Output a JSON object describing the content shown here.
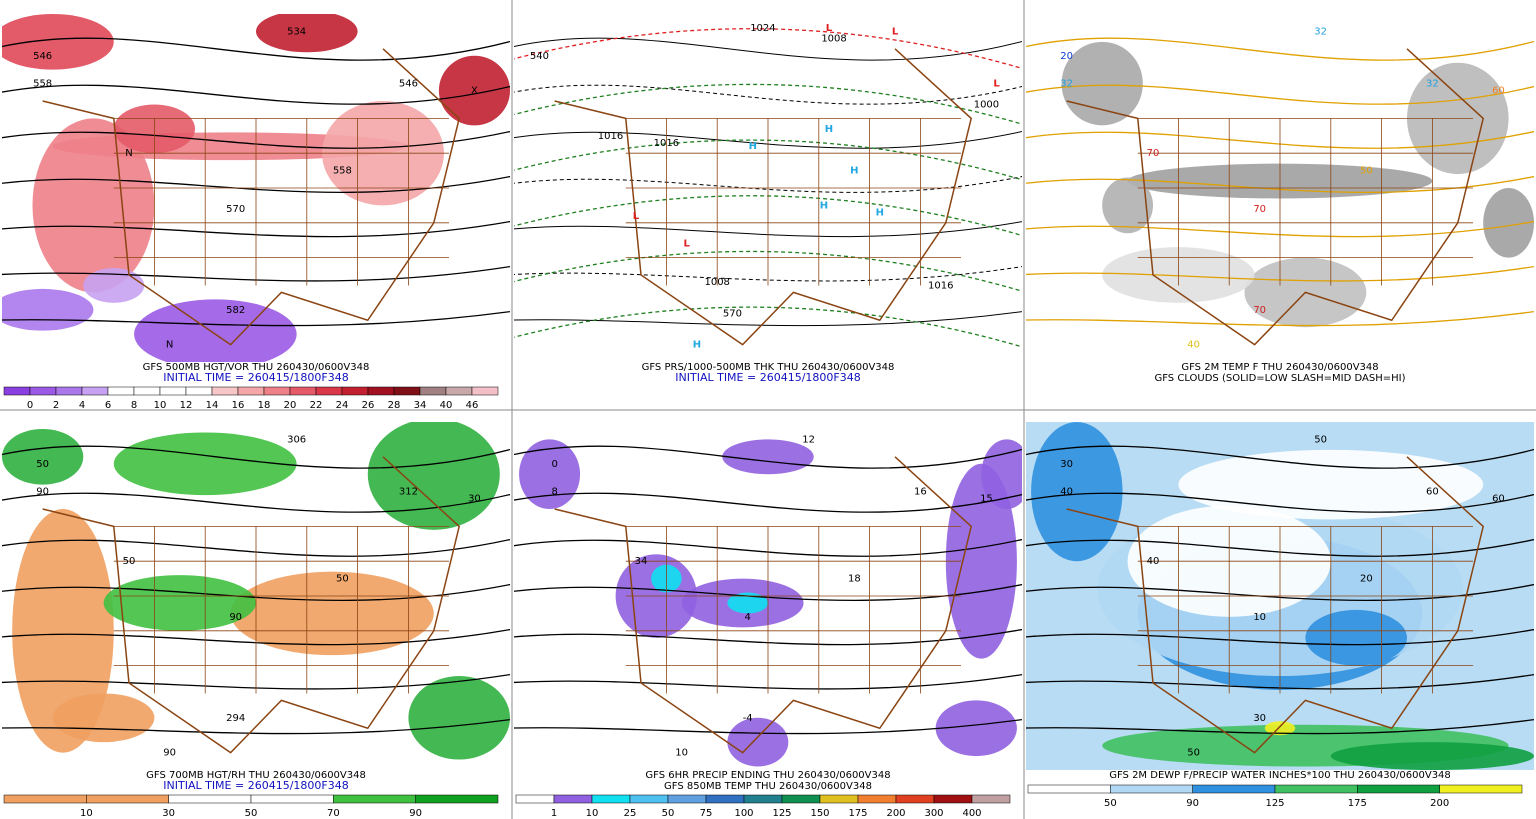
{
  "panels": [
    {
      "caption": "GFS 500MB HGT/VOR THU 260430/0600V348",
      "subcaption": "INITIAL TIME = 260415/1800F348",
      "colorbar": {
        "labels": [
          0,
          2,
          4,
          6,
          8,
          10,
          12,
          14,
          16,
          18,
          20,
          22,
          24,
          26,
          28,
          34,
          40,
          46
        ],
        "colors": [
          "#8a3fe0",
          "#9a5ae6",
          "#ab78ec",
          "#c7a2f2",
          "#ffffff",
          "#ffffff",
          "#ffffff",
          "#ffffff",
          "#f7c6c6",
          "#f4a6a8",
          "#ee8088",
          "#e45a68",
          "#d83848",
          "#c22030",
          "#a01020",
          "#801018",
          "#a08080",
          "#c8a8a8",
          "#f4c0c8"
        ]
      },
      "map_labels": [
        "546",
        "558",
        "534",
        "546",
        "558",
        "570",
        "582",
        "N",
        "N",
        "X"
      ]
    },
    {
      "caption": "GFS PRS/1000-500MB THK THU 260430/0600V348",
      "subcaption": "INITIAL TIME = 260415/1800F348",
      "map_labels": [
        "L",
        "L",
        "L",
        "L",
        "L",
        "H",
        "H",
        "H",
        "H",
        "H",
        "H",
        "1016",
        "1008",
        "1000",
        "1016",
        "1024",
        "570",
        "540",
        "1008",
        "1016"
      ]
    },
    {
      "caption": "GFS 2M TEMP F THU 260430/0600V348",
      "subcaption": "GFS CLOUDS (SOLID=LOW SLASH=MID DASH=HI)",
      "map_labels": [
        "20",
        "32",
        "32",
        "32",
        "50",
        "70",
        "70",
        "70",
        "40",
        "60"
      ]
    },
    {
      "caption": "GFS 700MB HGT/RH THU 260430/0600V348",
      "subcaption": "INITIAL TIME = 260415/1800F348",
      "colorbar": {
        "labels": [
          10,
          30,
          50,
          70,
          90
        ],
        "colors": [
          "#f0a060",
          "#f0a060",
          "#ffffff",
          "#ffffff",
          "#40c040",
          "#10a020"
        ]
      },
      "map_labels": [
        "50",
        "90",
        "306",
        "312",
        "50",
        "90",
        "294",
        "50",
        "90",
        "30"
      ]
    },
    {
      "caption": "GFS 6HR PRECIP ENDING THU 260430/0600V348",
      "subcaption": "GFS 850MB TEMP THU 260430/0600V348",
      "colorbar": {
        "labels": [
          1,
          10,
          25,
          50,
          75,
          100,
          125,
          150,
          175,
          200,
          300,
          400
        ],
        "colors": [
          "#ffffff",
          "#9060e0",
          "#10e0f0",
          "#50c0f0",
          "#60a0e0",
          "#3070c0",
          "#208090",
          "#109050",
          "#e0c020",
          "#f08030",
          "#e04020",
          "#a01010",
          "#c0a0a0"
        ]
      },
      "map_labels": [
        "0",
        "8",
        "12",
        "16",
        "18",
        "4",
        "-4",
        "34",
        "10",
        "15"
      ]
    },
    {
      "caption": "GFS 2M DEWP F/PRECIP WATER INCHES*100 THU 260430/0600V348",
      "colorbar": {
        "labels": [
          50,
          90,
          125,
          175,
          200
        ],
        "colors": [
          "#ffffff",
          "#b0d8f4",
          "#3090e0",
          "#40c060",
          "#10a040",
          "#f0f020"
        ]
      },
      "map_labels": [
        "30",
        "40",
        "50",
        "60",
        "20",
        "10",
        "30",
        "40",
        "50",
        "60"
      ]
    }
  ]
}
